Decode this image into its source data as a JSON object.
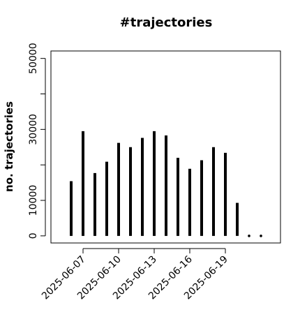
{
  "chart_data": {
    "type": "bar",
    "title": "#trajectories",
    "y_label": "no. trajectories",
    "x": [
      "2025-06-06",
      "2025-06-07",
      "2025-06-08",
      "2025-06-09",
      "2025-06-10",
      "2025-06-11",
      "2025-06-12",
      "2025-06-13",
      "2025-06-14",
      "2025-06-15",
      "2025-06-16",
      "2025-06-17",
      "2025-06-18",
      "2025-06-19",
      "2025-06-20",
      "2025-06-21",
      "2025-06-22"
    ],
    "values": [
      15400,
      29500,
      17700,
      20900,
      26200,
      25000,
      27600,
      29500,
      28300,
      22000,
      18900,
      21300,
      25000,
      23400,
      9300,
      0,
      0
    ],
    "color": "#000000",
    "xticks": [
      "2025-06-07",
      "2025-06-10",
      "2025-06-13",
      "2025-06-16",
      "2025-06-19"
    ],
    "ylim": [
      -2000,
      52100
    ],
    "yticks": [
      0,
      10000,
      30000,
      50000
    ],
    "y_minor_ticks": [
      20000,
      40000
    ]
  }
}
